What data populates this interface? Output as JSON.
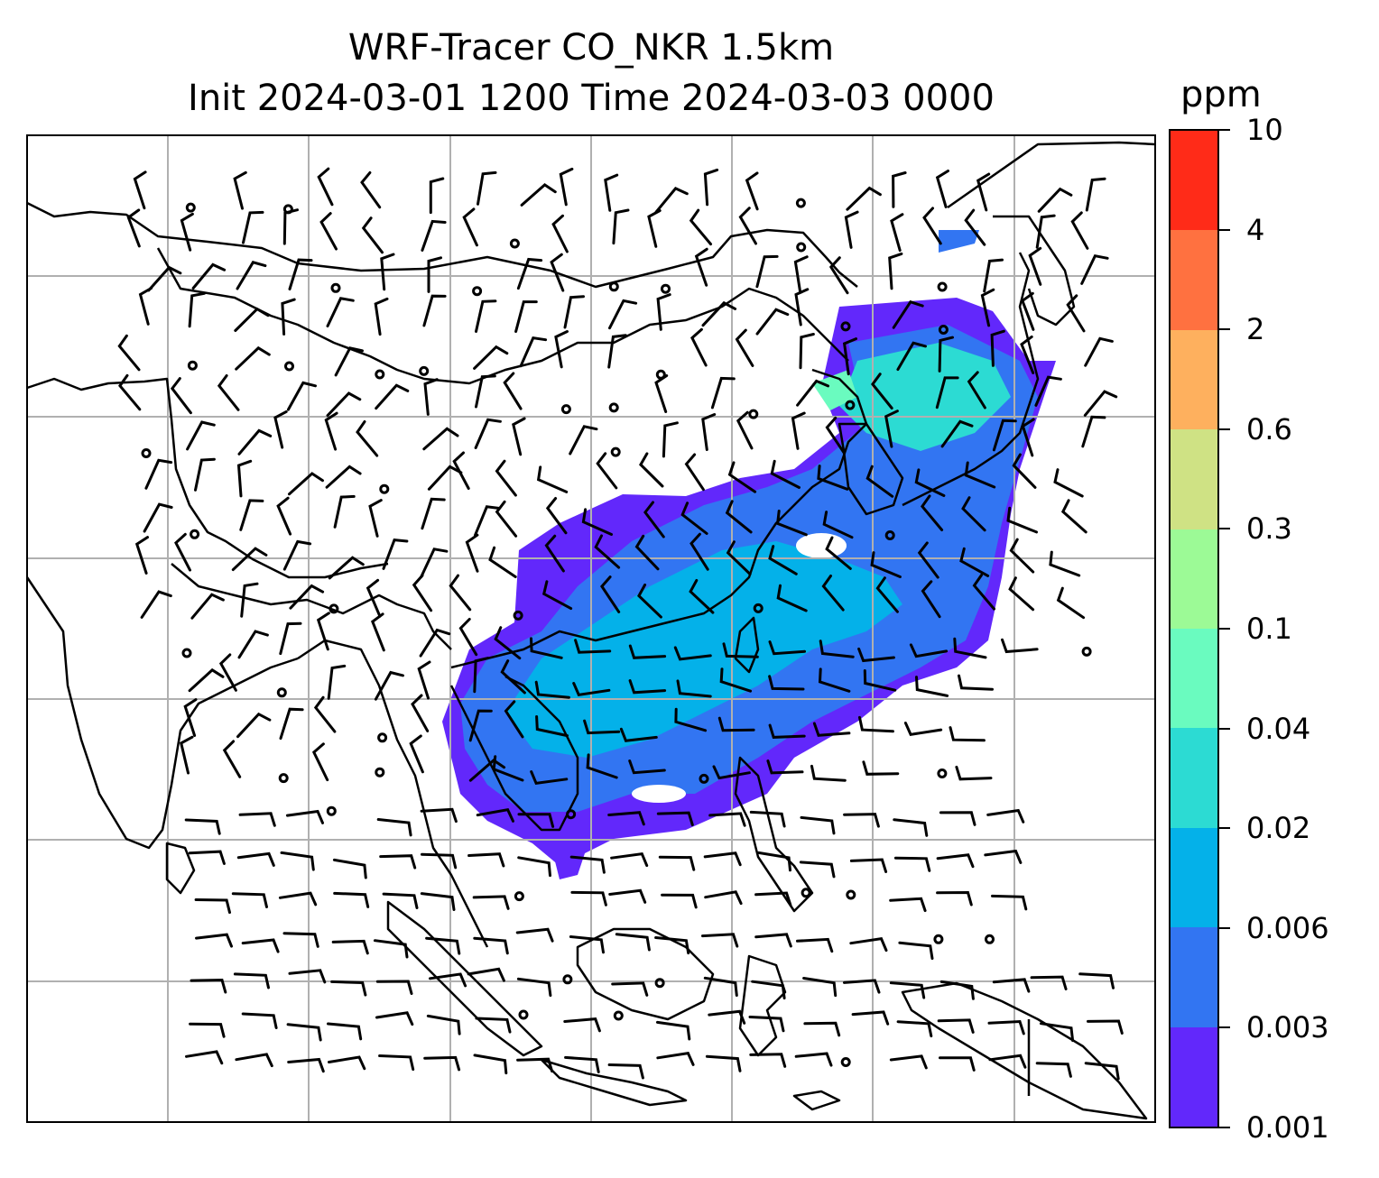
{
  "title_line1": "WRF-Tracer CO_NKR 1.5km",
  "title_line2": "Init 2024-03-01 1200 Time 2024-03-03 0000",
  "colorbar": {
    "unit": "ppm",
    "levels": [
      "0.001",
      "0.003",
      "0.006",
      "0.02",
      "0.04",
      "0.1",
      "0.3",
      "0.6",
      "2",
      "4",
      "10"
    ],
    "colors": [
      "#6228fb",
      "#3275f2",
      "#04b1e9",
      "#2cdbd3",
      "#6afbbf",
      "#9cfa96",
      "#cfe284",
      "#feb05e",
      "#ff7140",
      "#ff2b18"
    ]
  },
  "map_legend_colors": {
    "coast": "#000000",
    "grid": "#b0b0b0",
    "wind": "#000000"
  }
}
